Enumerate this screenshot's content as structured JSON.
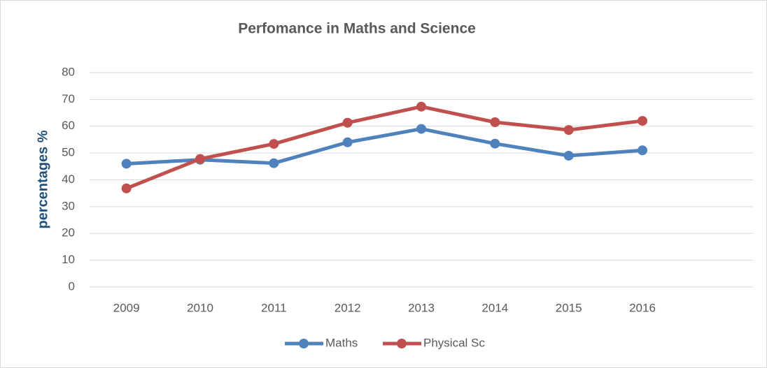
{
  "chart_data": {
    "type": "line",
    "title": "Perfomance in Maths and Science",
    "y_label": "percentages %",
    "categories": [
      "2009",
      "2010",
      "2011",
      "2012",
      "2013",
      "2014",
      "2015",
      "2016",
      null
    ],
    "series": [
      {
        "name": "Maths",
        "color": "#4f81bd",
        "values": [
          46,
          47.5,
          46.2,
          54,
          59,
          53.5,
          49,
          51,
          null
        ]
      },
      {
        "name": "Physical Sc",
        "color": "#c0504d",
        "values": [
          36.8,
          47.8,
          53.4,
          61.3,
          67.3,
          61.5,
          58.6,
          62,
          null
        ]
      }
    ],
    "ylim": [
      0,
      80
    ],
    "yticks": [
      0,
      10,
      20,
      30,
      40,
      50,
      60,
      70,
      80
    ],
    "grid": true,
    "legend": "bottom"
  }
}
